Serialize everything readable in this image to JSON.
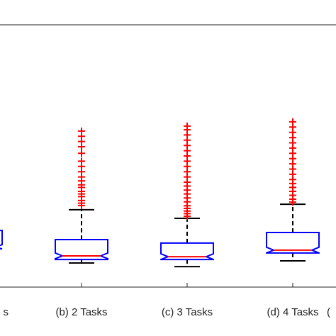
{
  "chart_data": {
    "type": "box",
    "categories": [
      "s",
      "(b) 2 Tasks",
      "(c) 3 Tasks",
      "(d) 4 Tasks",
      "("
    ],
    "boxes": [
      {
        "whisker_low": null,
        "q1": 14.6,
        "median": 15.1,
        "q3": 21.6,
        "whisker_high": null,
        "outliers": []
      },
      {
        "whisker_low": 9.2,
        "q1": 10.5,
        "median": 11.9,
        "q3": 18.1,
        "whisker_high": 29.5,
        "outliers": [
          31.1,
          32,
          33,
          34.5,
          35.5,
          36.5,
          38,
          39,
          40.5,
          42,
          44,
          46,
          48,
          51,
          53.5,
          55.5,
          57.5,
          59.5
        ]
      },
      {
        "whisker_low": 7.8,
        "q1": 10.5,
        "median": 11.6,
        "q3": 16.8,
        "whisker_high": 26.2,
        "outliers": [
          27,
          28,
          29,
          30,
          31,
          32.5,
          34,
          35.5,
          37,
          38.5,
          40,
          42,
          44,
          46,
          48,
          50,
          52,
          54,
          56,
          58,
          60,
          61.4
        ]
      },
      {
        "whisker_low": 10,
        "q1": 13,
        "median": 14.1,
        "q3": 20.8,
        "whisker_high": 31.6,
        "outliers": [
          32.4,
          33.5,
          35,
          36.5,
          38,
          39.5,
          41,
          43,
          45,
          47,
          49,
          51,
          53,
          55,
          57,
          59,
          61,
          63
        ]
      },
      null
    ],
    "box_color": "#0000ff",
    "median_color": "#ff0000",
    "whisker_color": "#000000",
    "outlier_color": "#ff0000",
    "ylim": [
      0,
      100
    ]
  }
}
